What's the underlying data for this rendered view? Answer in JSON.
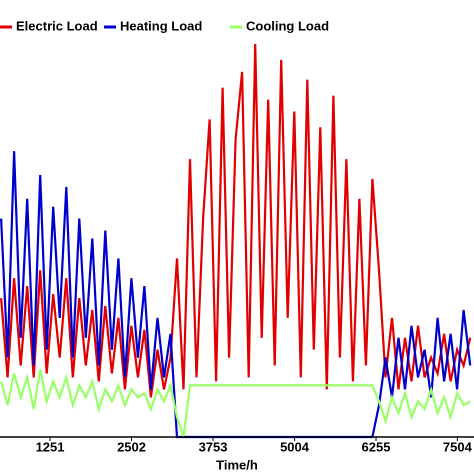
{
  "chart_data": {
    "type": "line",
    "xlabel": "Time/h",
    "xlim": [
      483,
      7759
    ],
    "xticks": [
      1251,
      2502,
      3753,
      5004,
      6255,
      7504
    ],
    "ylim": [
      0,
      100
    ],
    "x": [
      500,
      600,
      700,
      800,
      900,
      1000,
      1100,
      1200,
      1300,
      1400,
      1500,
      1600,
      1700,
      1800,
      1900,
      2000,
      2100,
      2200,
      2300,
      2400,
      2500,
      2600,
      2700,
      2800,
      2900,
      3000,
      3100,
      3200,
      3300,
      3400,
      3500,
      3600,
      3700,
      3800,
      3900,
      4000,
      4100,
      4200,
      4300,
      4400,
      4500,
      4600,
      4700,
      4800,
      4900,
      5000,
      5100,
      5200,
      5300,
      5400,
      5500,
      5600,
      5700,
      5800,
      5900,
      6000,
      6100,
      6200,
      6300,
      6400,
      6500,
      6600,
      6700,
      6800,
      6900,
      7000,
      7100,
      7200,
      7300,
      7400,
      7500,
      7600,
      7700
    ],
    "series": [
      {
        "name": "Electric Load",
        "color": "#e00000",
        "values": [
          35,
          15,
          40,
          18,
          38,
          15,
          42,
          16,
          36,
          20,
          40,
          15,
          35,
          18,
          32,
          14,
          33,
          16,
          30,
          12,
          28,
          15,
          27,
          10,
          22,
          12,
          20,
          45,
          12,
          70,
          15,
          55,
          80,
          14,
          88,
          20,
          75,
          92,
          15,
          99,
          25,
          85,
          18,
          95,
          30,
          82,
          15,
          90,
          22,
          78,
          12,
          86,
          20,
          70,
          14,
          60,
          18,
          65,
          42,
          15,
          30,
          12,
          25,
          14,
          28,
          15,
          20,
          16,
          26,
          14,
          22,
          18,
          25
        ]
      },
      {
        "name": "Heating Load",
        "color": "#0000cc",
        "values": [
          55,
          20,
          72,
          25,
          60,
          18,
          66,
          22,
          58,
          30,
          63,
          20,
          55,
          25,
          50,
          18,
          52,
          22,
          45,
          15,
          40,
          20,
          38,
          12,
          30,
          15,
          26,
          0,
          0,
          0,
          0,
          0,
          0,
          0,
          0,
          0,
          0,
          0,
          0,
          0,
          0,
          0,
          0,
          0,
          0,
          0,
          0,
          0,
          0,
          0,
          0,
          0,
          0,
          0,
          0,
          0,
          0,
          0,
          8,
          20,
          10,
          25,
          12,
          28,
          15,
          22,
          10,
          30,
          14,
          26,
          12,
          32,
          18
        ]
      },
      {
        "name": "Cooling Load",
        "color": "#99ff66",
        "values": [
          14,
          8,
          16,
          10,
          15,
          7,
          17,
          9,
          14,
          10,
          15,
          8,
          13,
          10,
          14,
          7,
          12,
          9,
          13,
          8,
          12,
          10,
          11,
          7,
          12,
          9,
          13,
          5,
          0,
          13,
          13,
          13,
          13,
          13,
          13,
          13,
          13,
          13,
          13,
          13,
          13,
          13,
          13,
          13,
          13,
          13,
          13,
          13,
          13,
          13,
          13,
          13,
          13,
          13,
          13,
          13,
          13,
          13,
          9,
          4,
          10,
          6,
          11,
          5,
          9,
          7,
          12,
          6,
          10,
          5,
          11,
          8,
          9
        ]
      }
    ]
  }
}
